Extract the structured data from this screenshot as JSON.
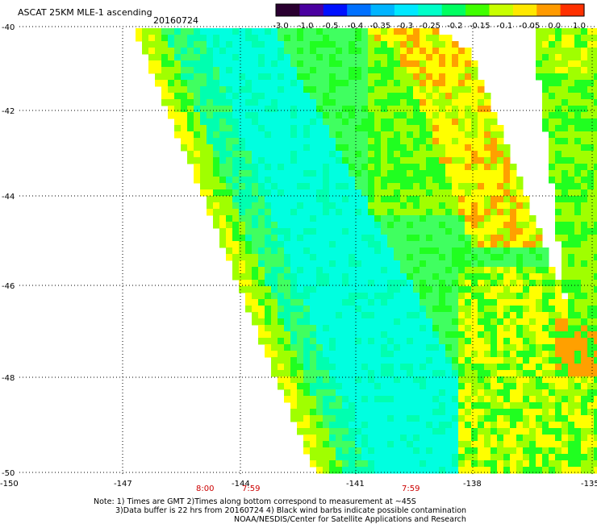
{
  "header": {
    "title": "ASCAT 25KM MLE-1 ascending",
    "date": "20160724"
  },
  "colorbar": {
    "labels": [
      "-3.0",
      "-1.0",
      "-0.5",
      "-0.4",
      "-0.35",
      "-0.3",
      "-0.25",
      "-0.2",
      "-0.15",
      "-0.1",
      "-0.05",
      "0.0",
      "1.0"
    ],
    "colors": [
      "#2a0030",
      "#4a00a0",
      "#0010ff",
      "#0070ff",
      "#00b4ff",
      "#00e8ff",
      "#00ffc8",
      "#00ff60",
      "#40ff00",
      "#c8ff00",
      "#ffe800",
      "#ff9a00",
      "#ff3000"
    ]
  },
  "axes": {
    "x_labels": [
      "-150",
      "-147",
      "-144",
      "-141",
      "-138",
      "-135"
    ],
    "y_labels": [
      "-40",
      "-42",
      "-44",
      "-46",
      "-48",
      "-50"
    ]
  },
  "times": [
    "8:00",
    "7:59",
    "7:59"
  ],
  "notes": {
    "line1": "Note: 1) Times are GMT 2)Times along bottom correspond to measurement at ~45S",
    "line2": "3)Data buffer is 22 hrs from 20160724 4) Black wind barbs indicate possible contamination",
    "line3": "NOAA/NESDIS/Center for Satellite Applications and Research"
  },
  "legend_palette": {
    "cyan": "#00ffe0",
    "aqua": "#00ffb0",
    "green_light": "#40ff60",
    "green": "#20ff20",
    "yellow_green": "#a0ff00",
    "yellow": "#ffff00",
    "orange": "#ffa000",
    "red_orange": "#ff6000"
  }
}
